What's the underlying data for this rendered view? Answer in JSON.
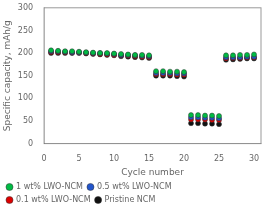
{
  "chart_data": {
    "type": "scatter",
    "xlabel": "Cycle number",
    "ylabel": "Specific capacity, mAh/g",
    "xlim": [
      0,
      31
    ],
    "ylim": [
      0,
      300
    ],
    "xticks": [
      0,
      5,
      10,
      15,
      20,
      25,
      30
    ],
    "yticks": [
      0,
      50,
      100,
      150,
      200,
      250,
      300
    ],
    "grid": false,
    "legend": "lower left",
    "x": [
      1,
      2,
      3,
      4,
      5,
      6,
      7,
      8,
      9,
      10,
      11,
      12,
      13,
      14,
      15,
      16,
      17,
      18,
      19,
      20,
      21,
      22,
      23,
      24,
      25,
      26,
      27,
      28,
      29,
      30
    ],
    "series": [
      {
        "name": "Pristine NCM",
        "color": "#111111",
        "marker": "circle",
        "values": [
          200,
          200,
          200,
          200,
          200,
          199,
          198,
          197,
          196,
          195,
          193,
          192,
          191,
          190,
          189,
          150,
          150,
          150,
          149,
          148,
          45,
          45,
          44,
          44,
          43,
          185,
          186,
          187,
          188,
          188
        ]
      },
      {
        "name": "0.1 wt% LWO-NCM",
        "color": "#dd0000",
        "marker": "circle",
        "values": [
          202,
          202,
          202,
          201,
          201,
          200,
          199,
          198,
          197,
          196,
          195,
          194,
          193,
          192,
          191,
          153,
          153,
          153,
          152,
          152,
          53,
          53,
          53,
          52,
          52,
          188,
          189,
          189,
          190,
          190
        ]
      },
      {
        "name": "0.5 wt% LWO-NCM",
        "color": "#2255cc",
        "marker": "circle",
        "values": [
          204,
          204,
          203,
          202,
          202,
          201,
          200,
          200,
          199,
          198,
          196,
          196,
          195,
          194,
          193,
          156,
          156,
          156,
          155,
          155,
          58,
          58,
          57,
          57,
          56,
          191,
          191,
          191,
          192,
          192
        ]
      },
      {
        "name": "1 wt% LWO-NCM",
        "color": "#00bb44",
        "marker": "circle",
        "values": [
          206,
          205,
          204,
          204,
          203,
          202,
          201,
          200,
          200,
          199,
          198,
          197,
          196,
          196,
          195,
          160,
          160,
          159,
          159,
          158,
          63,
          63,
          62,
          62,
          61,
          195,
          195,
          196,
          196,
          197
        ]
      }
    ]
  }
}
